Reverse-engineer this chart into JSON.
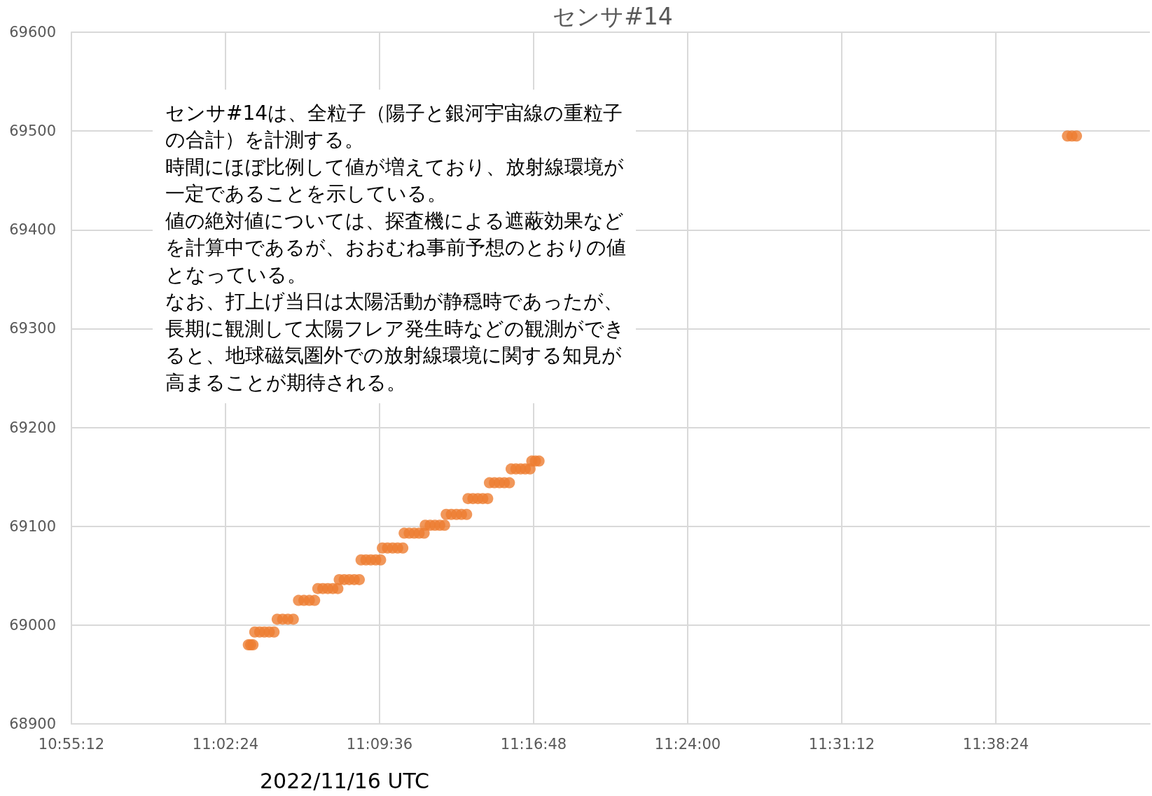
{
  "chart_data": {
    "type": "scatter",
    "title": "センサ#14",
    "xlabel": "2022/11/16 UTC",
    "annotations": [
      "センサ#14は、全粒子（陽子と銀河宇宙線の重粒子の合計）を計測する。",
      "時間にほぼ比例して値が増えており、放射線環境が一定であることを示している。",
      "値の絶対値については、探査機による遮蔽効果などを計算中であるが、おおむね事前予想のとおりの値となっている。",
      "なお、打上げ当日は太陽活動が静穏時であったが、長期に観測して太陽フレア発生時などの観測ができると、地球磁気圏外での放射線環境に関する知見が高まることが期待される。"
    ],
    "x": [
      11.0578,
      11.0596,
      11.0614,
      11.0628,
      11.0666,
      11.0703,
      11.0741,
      11.0778,
      11.0803,
      11.0845,
      11.0886,
      11.0928,
      11.0969,
      11.1011,
      11.1053,
      11.1094,
      11.1119,
      11.1158,
      11.1197,
      11.1236,
      11.1275,
      11.1286,
      11.1325,
      11.1364,
      11.1403,
      11.1442,
      11.1456,
      11.1494,
      11.1532,
      11.157,
      11.1608,
      11.1622,
      11.1662,
      11.1702,
      11.1741,
      11.1781,
      11.1792,
      11.1831,
      11.187,
      11.1908,
      11.1947,
      11.1956,
      11.1994,
      11.2031,
      11.2069,
      11.2106,
      11.2119,
      11.2159,
      11.2199,
      11.2238,
      11.2278,
      11.2289,
      11.2327,
      11.2366,
      11.2404,
      11.2442,
      11.2456,
      11.2495,
      11.2534,
      11.2572,
      11.2611,
      11.2625,
      11.2662,
      11.2699,
      11.2735,
      11.2772,
      11.2786,
      11.2814,
      11.2842,
      11.6958,
      11.6993,
      11.7028
    ],
    "values": [
      68980,
      68980,
      68980,
      68993,
      68993,
      68993,
      68993,
      68993,
      69006,
      69006,
      69006,
      69006,
      69025,
      69025,
      69025,
      69025,
      69037,
      69037,
      69037,
      69037,
      69037,
      69046,
      69046,
      69046,
      69046,
      69046,
      69066,
      69066,
      69066,
      69066,
      69066,
      69078,
      69078,
      69078,
      69078,
      69078,
      69093,
      69093,
      69093,
      69093,
      69093,
      69101,
      69101,
      69101,
      69101,
      69101,
      69112,
      69112,
      69112,
      69112,
      69112,
      69128,
      69128,
      69128,
      69128,
      69128,
      69144,
      69144,
      69144,
      69144,
      69144,
      69158,
      69158,
      69158,
      69158,
      69158,
      69166,
      69166,
      69166,
      69495,
      69495,
      69495
    ],
    "color": "#ed7d31",
    "marker": "circle",
    "xlim": [
      10.92,
      11.76
    ],
    "xticks": [
      {
        "value": 10.92,
        "label": "10:55:12"
      },
      {
        "value": 11.04,
        "label": "11:02:24"
      },
      {
        "value": 11.16,
        "label": "11:09:36"
      },
      {
        "value": 11.28,
        "label": "11:16:48"
      },
      {
        "value": 11.4,
        "label": "11:24:00"
      },
      {
        "value": 11.52,
        "label": "11:31:12"
      },
      {
        "value": 11.64,
        "label": "11:38:24"
      }
    ],
    "ylim": [
      68900,
      69600
    ],
    "yticks": [
      68900,
      69000,
      69100,
      69200,
      69300,
      69400,
      69500,
      69600
    ],
    "grid": true
  }
}
